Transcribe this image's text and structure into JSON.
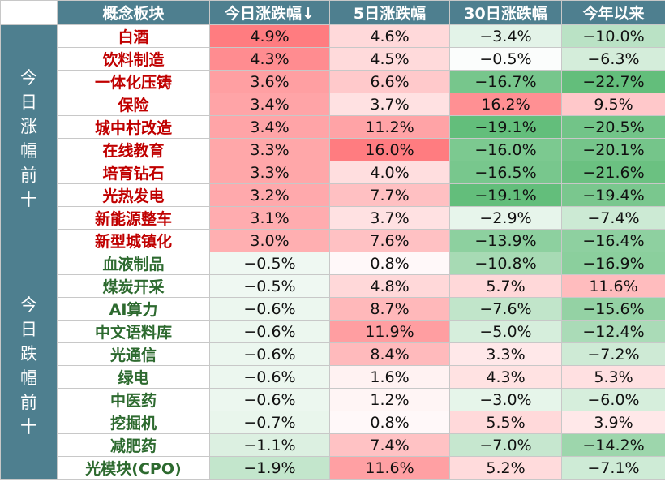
{
  "header": {
    "concept": "概念板块",
    "today": "今日涨跌幅↓",
    "d5": "5日涨跌幅",
    "d30": "30日涨跌幅",
    "ytd": "今年以来"
  },
  "groups": [
    {
      "label": [
        "今",
        "日",
        "涨",
        "幅",
        "前",
        "十"
      ],
      "rows": [
        {
          "name": "白酒",
          "today": "4.9%",
          "d5": "4.6%",
          "d30": "−3.4%",
          "ytd": "−10.0%"
        },
        {
          "name": "饮料制造",
          "today": "4.3%",
          "d5": "4.5%",
          "d30": "−0.5%",
          "ytd": "−6.3%"
        },
        {
          "name": "一体化压铸",
          "today": "3.6%",
          "d5": "6.6%",
          "d30": "−16.7%",
          "ytd": "−22.7%"
        },
        {
          "name": "保险",
          "today": "3.4%",
          "d5": "3.7%",
          "d30": "16.2%",
          "ytd": "9.5%"
        },
        {
          "name": "城中村改造",
          "today": "3.4%",
          "d5": "11.2%",
          "d30": "−19.1%",
          "ytd": "−20.5%"
        },
        {
          "name": "在线教育",
          "today": "3.3%",
          "d5": "16.0%",
          "d30": "−16.0%",
          "ytd": "−20.1%"
        },
        {
          "name": "培育钻石",
          "today": "3.3%",
          "d5": "4.0%",
          "d30": "−16.5%",
          "ytd": "−21.6%"
        },
        {
          "name": "光热发电",
          "today": "3.2%",
          "d5": "7.7%",
          "d30": "−19.1%",
          "ytd": "−19.4%"
        },
        {
          "name": "新能源整车",
          "today": "3.1%",
          "d5": "3.7%",
          "d30": "−2.9%",
          "ytd": "−7.4%"
        },
        {
          "name": "新型城镇化",
          "today": "3.0%",
          "d5": "7.6%",
          "d30": "−13.9%",
          "ytd": "−16.4%"
        }
      ]
    },
    {
      "label": [
        "今",
        "日",
        "跌",
        "幅",
        "前",
        "十"
      ],
      "rows": [
        {
          "name": "血液制品",
          "today": "−0.5%",
          "d5": "0.8%",
          "d30": "−10.8%",
          "ytd": "−16.9%"
        },
        {
          "name": "煤炭开采",
          "today": "−0.5%",
          "d5": "4.8%",
          "d30": "5.7%",
          "ytd": "11.6%"
        },
        {
          "name": "AI算力",
          "today": "−0.6%",
          "d5": "8.7%",
          "d30": "−7.6%",
          "ytd": "−15.6%"
        },
        {
          "name": "中文语料库",
          "today": "−0.6%",
          "d5": "11.9%",
          "d30": "−5.0%",
          "ytd": "−12.4%"
        },
        {
          "name": "光通信",
          "today": "−0.6%",
          "d5": "8.4%",
          "d30": "3.3%",
          "ytd": "−7.2%"
        },
        {
          "name": "绿电",
          "today": "−0.6%",
          "d5": "1.6%",
          "d30": "4.3%",
          "ytd": "5.3%"
        },
        {
          "name": "中医药",
          "today": "−0.6%",
          "d5": "1.2%",
          "d30": "−3.0%",
          "ytd": "−6.0%"
        },
        {
          "name": "挖掘机",
          "today": "−0.7%",
          "d5": "0.8%",
          "d30": "5.5%",
          "ytd": "3.9%"
        },
        {
          "name": "减肥药",
          "today": "−1.1%",
          "d5": "7.4%",
          "d30": "−7.0%",
          "ytd": "−14.2%"
        },
        {
          "name": "光模块(CPO)",
          "today": "−1.9%",
          "d5": "11.6%",
          "d30": "5.2%",
          "ytd": "−7.1%"
        }
      ]
    }
  ]
}
